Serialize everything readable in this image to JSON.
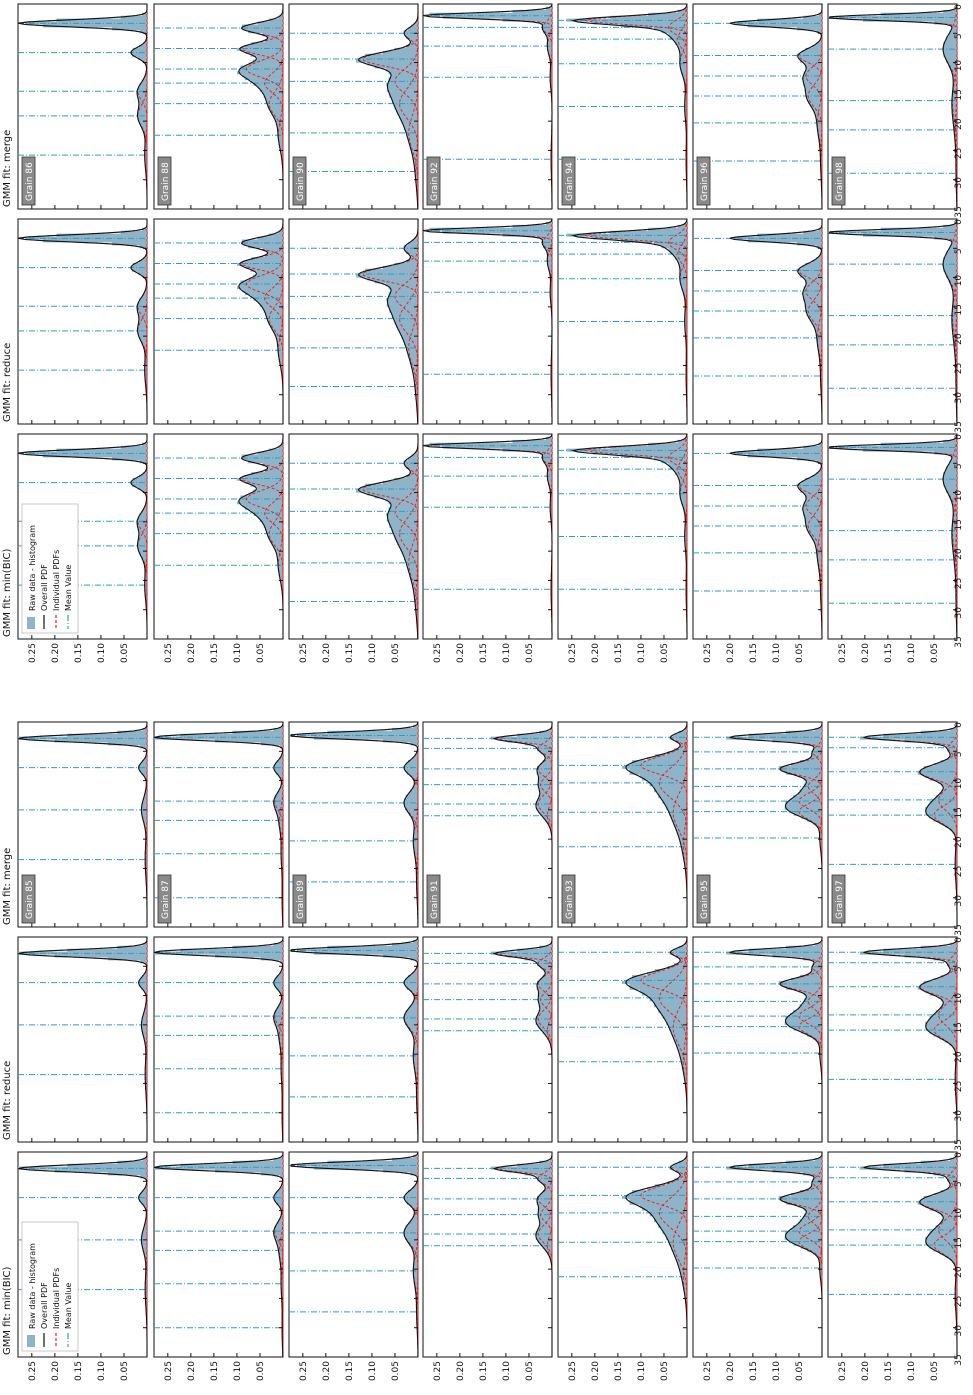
{
  "figure": {
    "legend_entries": [
      "Raw data - histogram",
      "Overall PDF",
      "Individual PDFs",
      "Mean Value"
    ],
    "colors": {
      "histogram": "#8fb4c9",
      "overall_pdf": "#111111",
      "individual_pdf": "#e0201b",
      "mean_value": "#2a9fc0",
      "grain_badge_fill": "#8a8a8a",
      "grain_badge_text": "#ffffff"
    },
    "orientation": "rotated 90 degrees clockwise; value axis runs down the page"
  },
  "chart_data": {
    "type": "area",
    "grid": false,
    "legend_placement": "top-left of first column in each block",
    "xlim": [
      0,
      35
    ],
    "ylim": [
      0,
      0.28
    ],
    "xticks": [
      0,
      5,
      10,
      15,
      20,
      25,
      30,
      35
    ],
    "yticks": [
      0.05,
      0.1,
      0.15,
      0.2,
      0.25
    ],
    "xticklabels": [
      "0",
      "5",
      "10",
      "15",
      "20",
      "25",
      "30",
      "35"
    ],
    "yticklabels": [
      "0.05",
      "0.10",
      "0.15",
      "0.20",
      "0.25"
    ],
    "blocks": [
      {
        "titles": [
          "GMM fit: min(BIC)",
          "GMM fit: reduce",
          "GMM fit: merge"
        ],
        "grains": [
          {
            "label": "Grain 85",
            "means": [
              2.8,
              7.8,
              15.0,
              23.5
            ],
            "components": [
              [
                0.28,
                2.8,
                0.6
              ],
              [
                0.018,
                7.8,
                1.0
              ],
              [
                0.012,
                15.0,
                2.0
              ],
              [
                0.004,
                23.5,
                3.0
              ]
            ]
          },
          {
            "label": "Grain 87",
            "means": [
              2.6,
              7.8,
              13.5,
              16.8,
              22.5,
              30.0
            ],
            "components": [
              [
                0.28,
                2.6,
                0.6
              ],
              [
                0.02,
                7.8,
                1.1
              ],
              [
                0.018,
                13.5,
                1.5
              ],
              [
                0.008,
                16.8,
                2.0
              ],
              [
                0.004,
                22.5,
                2.5
              ],
              [
                0.002,
                30.0,
                3.0
              ]
            ]
          },
          {
            "label": "Grain 89",
            "means": [
              2.3,
              7.8,
              13.8,
              20.3,
              27.3
            ],
            "components": [
              [
                0.28,
                2.3,
                0.6
              ],
              [
                0.03,
                7.8,
                1.2
              ],
              [
                0.03,
                13.8,
                1.8
              ],
              [
                0.01,
                20.3,
                2.5
              ],
              [
                0.003,
                27.3,
                3.0
              ]
            ]
          },
          {
            "label": "Grain 91",
            "means": [
              2.8,
              4.5,
              8.0,
              10.7,
              14.0,
              16.0
            ],
            "components": [
              [
                0.12,
                2.8,
                0.6
              ],
              [
                0.03,
                4.5,
                0.9
              ],
              [
                0.03,
                8.0,
                1.2
              ],
              [
                0.025,
                10.7,
                1.2
              ],
              [
                0.03,
                14.0,
                1.5
              ],
              [
                0.01,
                16.0,
                1.5
              ]
            ]
          },
          {
            "label": "Grain 93",
            "means": [
              2.6,
              7.4,
              10.4,
              15.4,
              21.3
            ],
            "components": [
              [
                0.035,
                2.6,
                0.7
              ],
              [
                0.1,
                7.4,
                1.5
              ],
              [
                0.06,
                10.4,
                2.5
              ],
              [
                0.03,
                15.4,
                3.0
              ],
              [
                0.008,
                21.3,
                3.0
              ]
            ]
          },
          {
            "label": "Grain 95",
            "means": [
              2.6,
              5.1,
              8.0,
              11.0,
              13.5,
              15.3,
              19.8
            ],
            "components": [
              [
                0.2,
                2.6,
                0.6
              ],
              [
                0.02,
                5.1,
                0.9
              ],
              [
                0.09,
                8.0,
                1.0
              ],
              [
                0.03,
                11.0,
                1.2
              ],
              [
                0.05,
                13.5,
                1.3
              ],
              [
                0.05,
                15.3,
                1.3
              ],
              [
                0.005,
                19.8,
                2.0
              ]
            ]
          },
          {
            "label": "Grain 97",
            "means": [
              2.6,
              4.4,
              8.5,
              13.3,
              15.9,
              24.3
            ],
            "components": [
              [
                0.2,
                2.6,
                0.6
              ],
              [
                0.02,
                4.4,
                0.9
              ],
              [
                0.08,
                8.5,
                1.3
              ],
              [
                0.04,
                13.3,
                1.8
              ],
              [
                0.05,
                15.9,
                1.5
              ],
              [
                0.004,
                24.3,
                3.0
              ]
            ]
          }
        ]
      },
      {
        "titles": [
          "GMM fit: min(BIC)",
          "GMM fit: reduce",
          "GMM fit: merge"
        ],
        "grains": [
          {
            "label": "Grain 86",
            "means": [
              3.3,
              8.3,
              14.9,
              19.1,
              25.8
            ],
            "components": [
              [
                0.28,
                3.3,
                0.6
              ],
              [
                0.035,
                8.3,
                0.9
              ],
              [
                0.02,
                14.9,
                1.5
              ],
              [
                0.02,
                19.1,
                1.8
              ],
              [
                0.005,
                25.8,
                2.5
              ]
            ]
          },
          {
            "label": "Grain 88",
            "means": [
              4.1,
              7.6,
              11.1,
              13.5,
              17.0,
              22.4
            ],
            "components": [
              [
                0.09,
                4.1,
                0.9
              ],
              [
                0.09,
                7.6,
                1.0
              ],
              [
                0.08,
                11.1,
                1.4
              ],
              [
                0.04,
                13.5,
                1.6
              ],
              [
                0.03,
                17.0,
                2.0
              ],
              [
                0.01,
                22.4,
                2.5
              ]
            ]
          },
          {
            "label": "Grain 90",
            "means": [
              5.0,
              9.4,
              13.2,
              17.0,
              22.0,
              28.6
            ],
            "components": [
              [
                0.03,
                5.0,
                1.0
              ],
              [
                0.12,
                9.4,
                1.2
              ],
              [
                0.05,
                13.2,
                2.0
              ],
              [
                0.04,
                17.0,
                2.5
              ],
              [
                0.02,
                22.0,
                3.0
              ],
              [
                0.005,
                28.6,
                3.0
              ]
            ]
          },
          {
            "label": "Grain 92",
            "means": [
              2.0,
              4.0,
              7.2,
              12.5,
              26.5
            ],
            "components": [
              [
                0.28,
                2.0,
                0.5
              ],
              [
                0.02,
                4.0,
                1.0
              ],
              [
                0.01,
                7.2,
                1.5
              ],
              [
                0.004,
                12.5,
                2.0
              ],
              [
                0.002,
                26.5,
                3.0
              ]
            ]
          },
          {
            "label": "Grain 94",
            "means": [
              2.8,
              4.0,
              6.0,
              10.2,
              17.5,
              26.5
            ],
            "components": [
              [
                0.22,
                2.8,
                0.7
              ],
              [
                0.04,
                4.0,
                1.2
              ],
              [
                0.02,
                6.0,
                1.5
              ],
              [
                0.015,
                10.2,
                2.0
              ],
              [
                0.005,
                17.5,
                2.5
              ],
              [
                0.002,
                26.5,
                3.0
              ]
            ]
          },
          {
            "label": "Grain 96",
            "means": [
              3.3,
              8.8,
              12.3,
              15.7,
              20.3,
              26.8
            ],
            "components": [
              [
                0.2,
                3.3,
                0.6
              ],
              [
                0.05,
                8.8,
                1.2
              ],
              [
                0.035,
                12.3,
                1.5
              ],
              [
                0.03,
                15.7,
                1.8
              ],
              [
                0.01,
                20.3,
                2.5
              ],
              [
                0.003,
                26.8,
                3.0
              ]
            ]
          },
          {
            "label": "Grain 98",
            "means": [
              2.3,
              7.7,
              16.5,
              21.5,
              28.9
            ],
            "components": [
              [
                0.28,
                2.3,
                0.5
              ],
              [
                0.03,
                7.7,
                2.5
              ],
              [
                0.01,
                16.5,
                3.0
              ],
              [
                0.004,
                21.5,
                3.0
              ],
              [
                0.002,
                28.9,
                3.0
              ]
            ]
          }
        ]
      }
    ]
  }
}
